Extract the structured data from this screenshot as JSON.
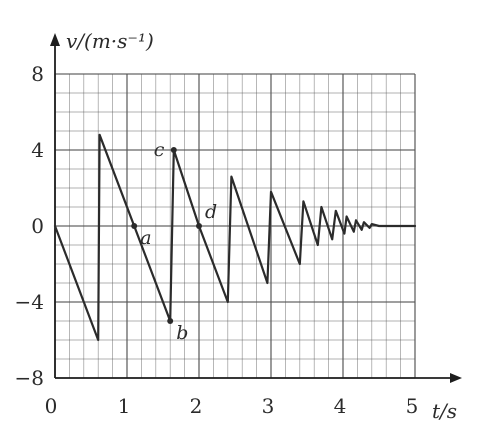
{
  "chart_data": {
    "type": "line",
    "ylabel": "v/(m·s⁻¹)",
    "xlabel": "t/s",
    "xlim": [
      0,
      5
    ],
    "ylim": [
      -8,
      8
    ],
    "grid": true,
    "x_ticks": [
      "0",
      "1",
      "2",
      "3",
      "4",
      "5"
    ],
    "y_ticks": [
      "8",
      "4",
      "0",
      "−4",
      "−8"
    ],
    "series": [
      {
        "points": [
          [
            0.0,
            0.0
          ],
          [
            0.6,
            -6.0
          ],
          [
            0.62,
            4.8
          ],
          [
            1.1,
            0.0
          ],
          [
            1.6,
            -5.0
          ],
          [
            1.65,
            4.0
          ],
          [
            2.0,
            0.0
          ],
          [
            2.4,
            -4.0
          ],
          [
            2.45,
            2.6
          ],
          [
            2.95,
            -3.0
          ],
          [
            3.0,
            1.8
          ],
          [
            3.4,
            -2.0
          ],
          [
            3.45,
            1.3
          ],
          [
            3.65,
            -1.0
          ],
          [
            3.7,
            1.0
          ],
          [
            3.85,
            -0.7
          ],
          [
            3.9,
            0.8
          ],
          [
            4.02,
            -0.4
          ],
          [
            4.05,
            0.5
          ],
          [
            4.15,
            -0.3
          ],
          [
            4.18,
            0.3
          ],
          [
            4.26,
            -0.2
          ],
          [
            4.29,
            0.2
          ],
          [
            4.37,
            -0.1
          ],
          [
            4.4,
            0.1
          ],
          [
            4.5,
            0.0
          ],
          [
            4.58,
            0.0
          ],
          [
            5.0,
            0.0
          ]
        ]
      }
    ],
    "annotations": [
      {
        "text": "a",
        "x": 1.1,
        "y": 0.0,
        "anchor": "below-right"
      },
      {
        "text": "b",
        "x": 1.6,
        "y": -5.0,
        "anchor": "below-right"
      },
      {
        "text": "c",
        "x": 1.65,
        "y": 4.0,
        "anchor": "left"
      },
      {
        "text": "d",
        "x": 2.0,
        "y": 0.0,
        "anchor": "above-right"
      }
    ]
  },
  "style": {
    "line_color": "#2b2b2b",
    "grid_color": "#555555",
    "axis_color": "#1e1e1e"
  }
}
